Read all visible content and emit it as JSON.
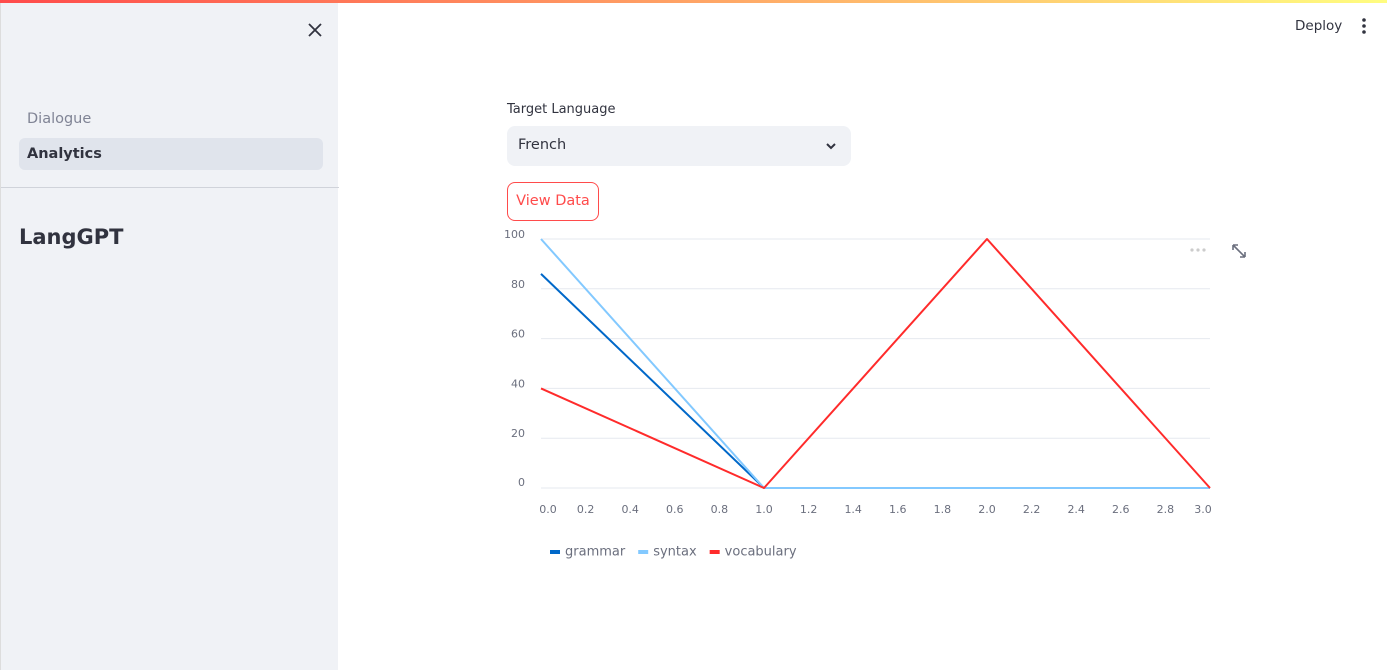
{
  "sidebar": {
    "nav": [
      "Dialogue",
      "Analytics"
    ],
    "title": "LangGPT"
  },
  "header": {
    "deploy": "Deploy"
  },
  "form": {
    "label": "Target Language",
    "selected": "French",
    "button": "View Data"
  },
  "chart_data": {
    "type": "line",
    "x": [
      0,
      1,
      2,
      3
    ],
    "series": [
      {
        "name": "grammar",
        "color": "#0068c9",
        "values": [
          86,
          0,
          0,
          0
        ]
      },
      {
        "name": "syntax",
        "color": "#83c9ff",
        "values": [
          100,
          0,
          0,
          0
        ]
      },
      {
        "name": "vocabulary",
        "color": "#ff2b2b",
        "values": [
          40,
          0,
          100,
          0
        ]
      }
    ],
    "xlim": [
      0,
      3
    ],
    "xticks": [
      {
        "value": 0,
        "label": "0.0"
      },
      {
        "value": 0.2,
        "label": "0.2"
      },
      {
        "value": 0.4,
        "label": "0.4"
      },
      {
        "value": 0.6,
        "label": "0.6"
      },
      {
        "value": 0.8,
        "label": "0.8"
      },
      {
        "value": 1,
        "label": "1.0"
      },
      {
        "value": 1.2,
        "label": "1.2"
      },
      {
        "value": 1.4,
        "label": "1.4"
      },
      {
        "value": 1.6,
        "label": "1.6"
      },
      {
        "value": 1.8,
        "label": "1.8"
      },
      {
        "value": 2,
        "label": "2.0"
      },
      {
        "value": 2.2,
        "label": "2.2"
      },
      {
        "value": 2.4,
        "label": "2.4"
      },
      {
        "value": 2.6,
        "label": "2.6"
      },
      {
        "value": 2.8,
        "label": "2.8"
      },
      {
        "value": 3,
        "label": "3.0"
      }
    ],
    "ylim": [
      0,
      100
    ],
    "yticks": [
      0,
      20,
      40,
      60,
      80,
      100
    ],
    "grid": true,
    "legend": "bottom"
  }
}
